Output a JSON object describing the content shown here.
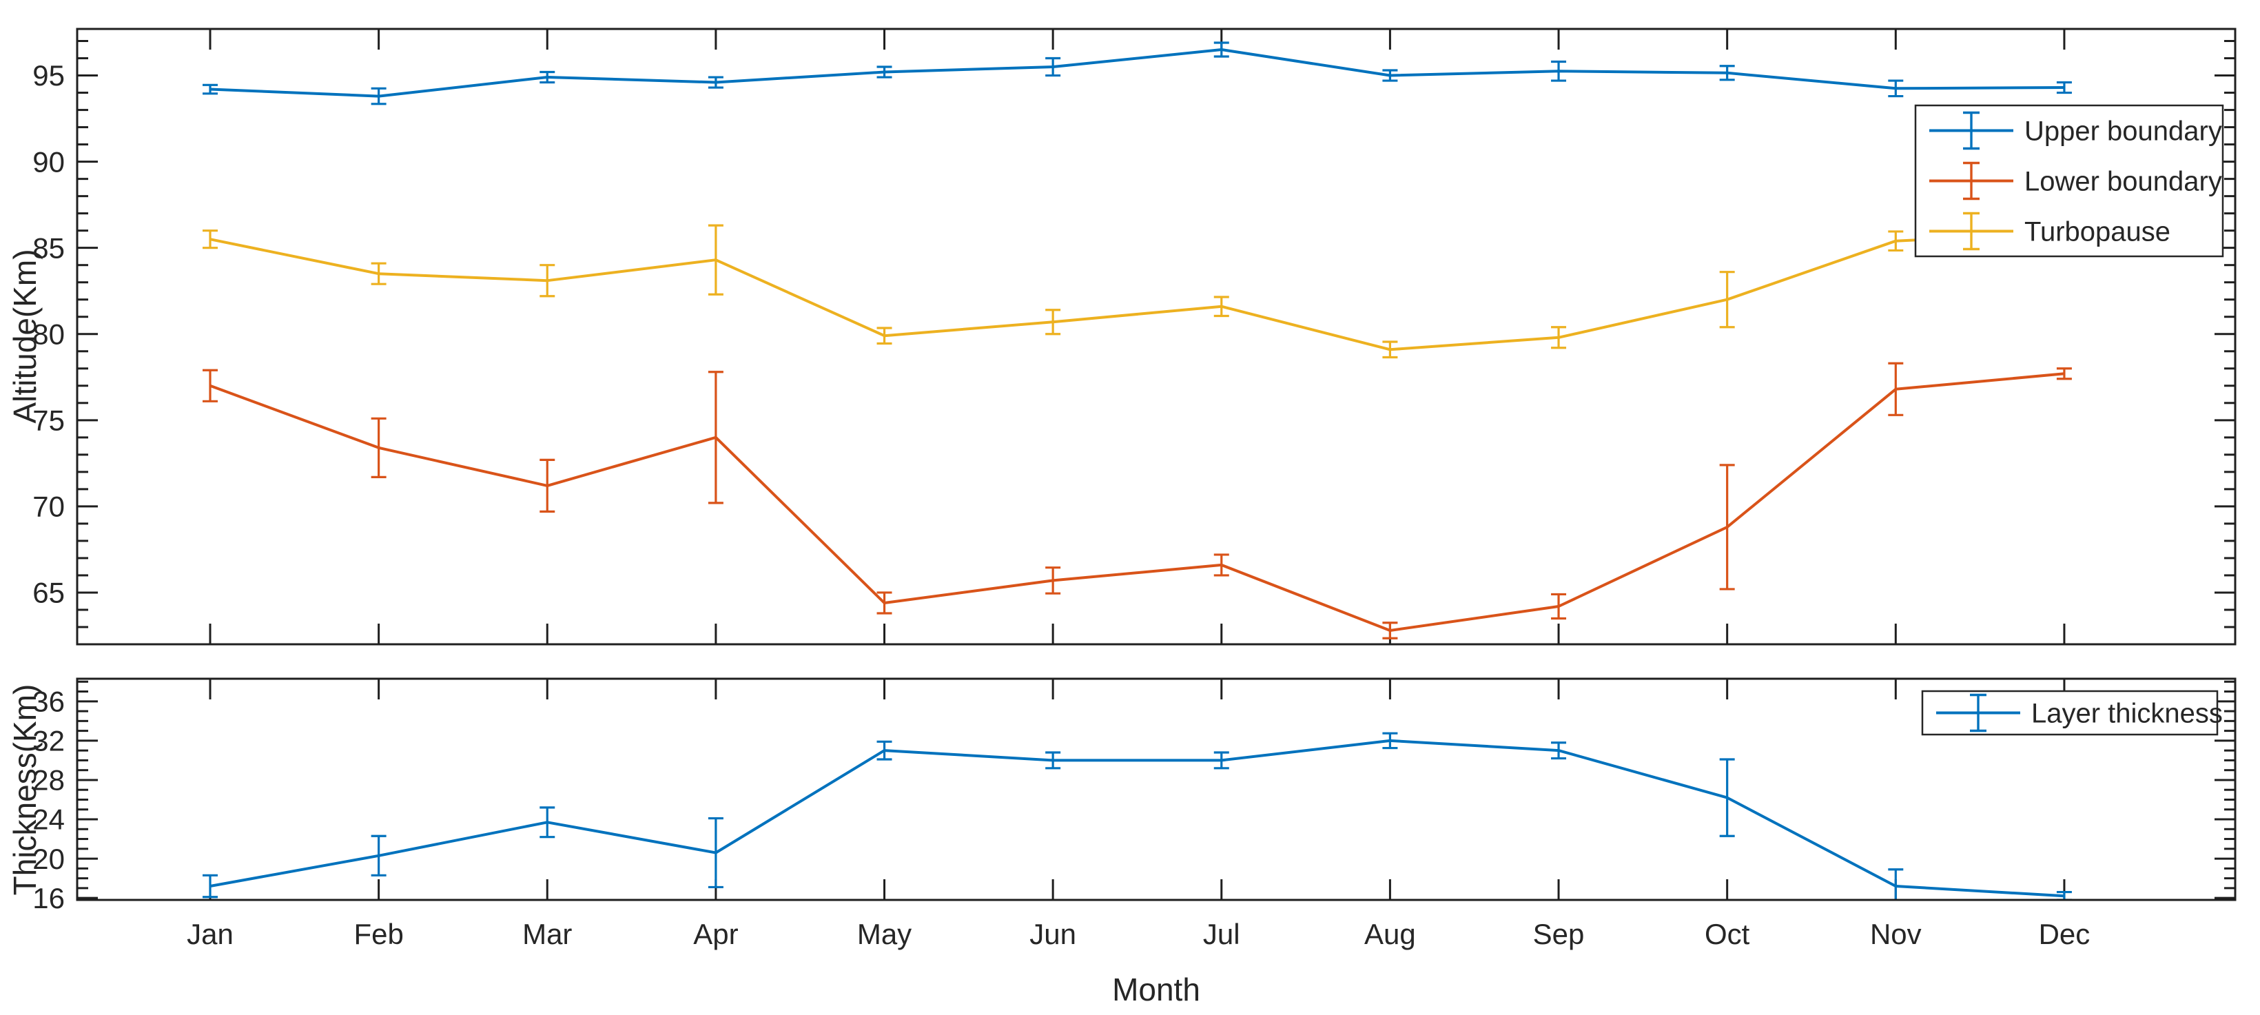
{
  "figure": {
    "background": "#ffffff",
    "axis_color": "#1f1f1f",
    "text_color": "#262626",
    "legend_border_color": "#262626"
  },
  "chart_data": [
    {
      "type": "line",
      "subplot": "top",
      "title": "",
      "xlabel": "",
      "ylabel": "Altitude(Km)",
      "categories": [
        "Jan",
        "Feb",
        "Mar",
        "Apr",
        "May",
        "Jun",
        "Jul",
        "Aug",
        "Sep",
        "Oct",
        "Nov",
        "Dec"
      ],
      "ylim": [
        62.0,
        97.7
      ],
      "yticks": [
        65,
        70,
        75,
        80,
        85,
        90,
        95
      ],
      "minor_tick_step": 1,
      "grid": false,
      "error_bars": true,
      "legend_position": "upper-right-inside",
      "series": [
        {
          "name": "Upper boundary",
          "color": "#0072BD",
          "values": [
            94.2,
            93.8,
            94.9,
            94.6,
            95.2,
            95.5,
            96.5,
            95.0,
            95.25,
            95.15,
            94.25,
            94.3
          ],
          "errors": [
            0.25,
            0.45,
            0.3,
            0.3,
            0.3,
            0.5,
            0.4,
            0.3,
            0.55,
            0.4,
            0.45,
            0.3
          ]
        },
        {
          "name": "Lower boundary",
          "color": "#D95319",
          "values": [
            77.0,
            73.4,
            71.2,
            74.0,
            64.4,
            65.7,
            66.6,
            62.8,
            64.2,
            68.8,
            76.8,
            77.7
          ],
          "errors": [
            0.9,
            1.7,
            1.5,
            3.8,
            0.6,
            0.75,
            0.6,
            0.45,
            0.7,
            3.6,
            1.5,
            0.3
          ]
        },
        {
          "name": "Turbopause",
          "color": "#EDB120",
          "values": [
            85.5,
            83.5,
            83.1,
            84.3,
            79.9,
            80.7,
            81.6,
            79.1,
            79.8,
            82.0,
            85.4,
            85.85
          ],
          "errors": [
            0.5,
            0.6,
            0.9,
            2.0,
            0.45,
            0.7,
            0.55,
            0.45,
            0.6,
            1.6,
            0.55,
            0.2
          ]
        }
      ]
    },
    {
      "type": "line",
      "subplot": "bottom",
      "title": "",
      "xlabel": "Month",
      "ylabel": "Thickness(Km)",
      "categories": [
        "Jan",
        "Feb",
        "Mar",
        "Apr",
        "May",
        "Jun",
        "Jul",
        "Aug",
        "Sep",
        "Oct",
        "Nov",
        "Dec"
      ],
      "ylim": [
        15.8,
        38.3
      ],
      "yticks": [
        16,
        20,
        24,
        28,
        32,
        36
      ],
      "minor_tick_step": 1,
      "grid": false,
      "error_bars": true,
      "legend_position": "upper-right-inside",
      "series": [
        {
          "name": "Layer thickness",
          "color": "#0072BD",
          "values": [
            17.2,
            20.3,
            23.7,
            20.6,
            31.0,
            30.0,
            30.0,
            32.0,
            31.0,
            26.2,
            17.2,
            16.2
          ],
          "errors": [
            1.1,
            2.0,
            1.5,
            3.5,
            0.9,
            0.8,
            0.8,
            0.75,
            0.8,
            3.9,
            1.7,
            0.4
          ]
        }
      ]
    }
  ]
}
